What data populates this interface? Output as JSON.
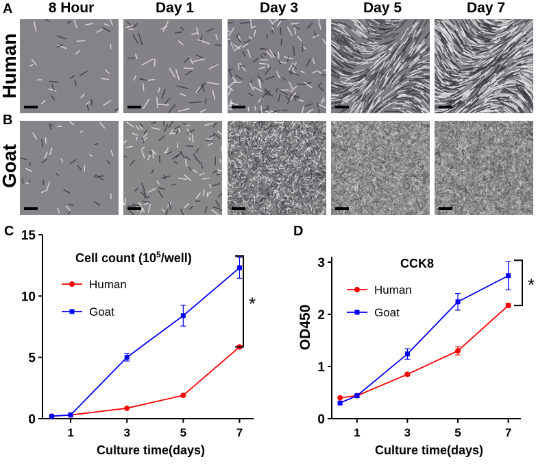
{
  "panels": {
    "A": "A",
    "B": "B",
    "C": "C",
    "D": "D"
  },
  "columns": [
    "8 Hour",
    "Day 1",
    "Day 3",
    "Day 5",
    "Day 7"
  ],
  "rows": [
    "Human",
    "Goat"
  ],
  "chart_data": [
    {
      "type": "line",
      "title": "Cell count (10⁵/well)",
      "title_base": "Cell count (10",
      "title_sup": "5",
      "title_tail": "/well)",
      "xlabel": "Culture time(days)",
      "ylabel": "",
      "x": [
        0.33,
        1,
        3,
        5,
        7
      ],
      "x_ticks": [
        1,
        3,
        5,
        7
      ],
      "y_ticks": [
        0,
        5,
        10,
        15
      ],
      "ylim": [
        0,
        15
      ],
      "xlim": [
        0,
        7.5
      ],
      "series": [
        {
          "name": "Human",
          "color": "#ff0000",
          "marker": "circle",
          "values": [
            0.2,
            0.3,
            0.85,
            1.9,
            5.85
          ],
          "err": [
            0,
            0,
            0,
            0.05,
            0.1
          ]
        },
        {
          "name": "Goat",
          "color": "#0000ff",
          "marker": "square",
          "values": [
            0.2,
            0.3,
            5.0,
            8.4,
            12.3
          ],
          "err": [
            0,
            0,
            0.3,
            0.85,
            0.85
          ]
        }
      ],
      "significance": "*"
    },
    {
      "type": "line",
      "title": "CCK8",
      "xlabel": "Culture time(days)",
      "ylabel": "OD450",
      "x": [
        0.33,
        1,
        3,
        5,
        7
      ],
      "x_ticks": [
        1,
        3,
        5,
        7
      ],
      "y_ticks": [
        0,
        1,
        2,
        3
      ],
      "ylim": [
        0,
        3.5
      ],
      "xlim": [
        0,
        7.5
      ],
      "series": [
        {
          "name": "Human",
          "color": "#ff0000",
          "marker": "circle",
          "values": [
            0.4,
            0.44,
            0.85,
            1.3,
            2.17
          ],
          "err": [
            0,
            0,
            0.03,
            0.08,
            0.04
          ]
        },
        {
          "name": "Goat",
          "color": "#0000ff",
          "marker": "square",
          "values": [
            0.3,
            0.44,
            1.24,
            2.24,
            2.74
          ],
          "err": [
            0,
            0.03,
            0.1,
            0.16,
            0.27
          ]
        }
      ],
      "significance": "*"
    }
  ]
}
